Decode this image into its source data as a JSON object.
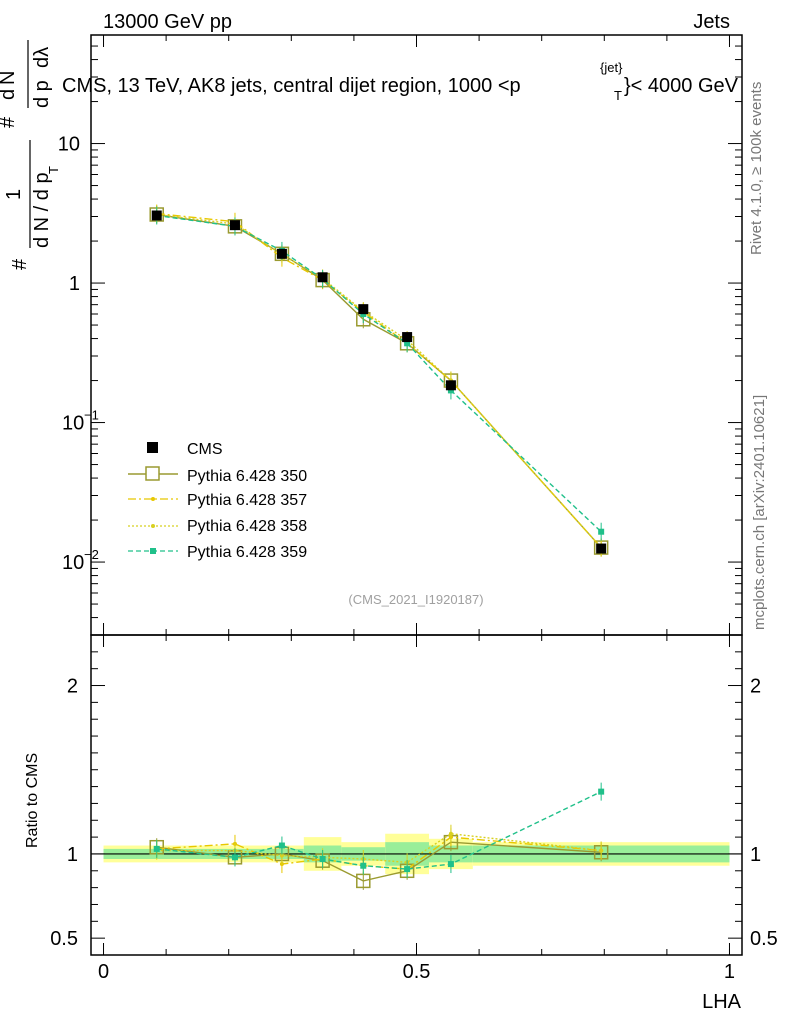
{
  "header": {
    "energy_label": "13000 GeV pp",
    "category_label": "Jets"
  },
  "side_labels": {
    "rivet": "Rivet 4.1.0, ≥ 100k events",
    "mcplots": "mcplots.cern.ch [arXiv:2401.10621]"
  },
  "chart_data": {
    "type": "line",
    "title": "CMS, 13 TeV, AK8 jets, central dijet region, 1000 <p",
    "title_sup": "{jet}",
    "title_sub": "T",
    "title_end": "}< 4000 GeV",
    "watermark": "(CMS_2021_I1920187)",
    "xlabel": "LHA",
    "ylabel": "1/dN/dpT  # d²N/dpT dλ",
    "ylabel_parts": {
      "a": "1",
      "b": "d N / d p",
      "c": "#",
      "d": "d",
      "e": "N",
      "f": "d p",
      "g": "dλ",
      "sub": "T",
      "hash": "#"
    },
    "ratio_ylabel": "Ratio to CMS",
    "xlim": [
      -0.02,
      1.02
    ],
    "ylim": [
      0.003,
      60
    ],
    "yscale": "log",
    "x_ticks": [
      "0",
      "0.5",
      "1"
    ],
    "y_ticks": [
      {
        "value": 0.01,
        "base": "10",
        "exp": "−2"
      },
      {
        "value": 0.1,
        "base": "10",
        "exp": "−1"
      },
      {
        "value": 1,
        "base": "1",
        "exp": ""
      },
      {
        "value": 10,
        "base": "10",
        "exp": ""
      }
    ],
    "ratio_ylim": [
      0.4,
      2.3
    ],
    "ratio_ticks": [
      "0.5",
      "1",
      "2"
    ],
    "ratio_tick_values": [
      0.5,
      1,
      2
    ],
    "x": [
      0.085,
      0.21,
      0.285,
      0.35,
      0.415,
      0.485,
      0.555,
      0.795
    ],
    "cms": {
      "name": "CMS",
      "values": [
        3.05,
        2.6,
        1.62,
        1.1,
        0.65,
        0.41,
        0.185,
        0.0125
      ],
      "band_x_edges": [
        0.0,
        0.25,
        0.32,
        0.38,
        0.45,
        0.52,
        0.59,
        1.0
      ],
      "band_stat": [
        0.03,
        0.03,
        0.05,
        0.04,
        0.07,
        0.05,
        0.05,
        0.06
      ],
      "band_total": [
        0.05,
        0.05,
        0.1,
        0.07,
        0.12,
        0.09,
        0.07,
        0.12
      ]
    },
    "series": [
      {
        "name": "Pythia 6.428 350",
        "color": "#9a9a30",
        "style": "solid",
        "marker": "open-square",
        "values": [
          3.1,
          2.55,
          1.62,
          1.05,
          0.55,
          0.37,
          0.2,
          0.0127
        ],
        "ratio": [
          1.04,
          0.98,
          1.0,
          0.96,
          0.84,
          0.9,
          1.07,
          1.01
        ]
      },
      {
        "name": "Pythia 6.428 357",
        "color": "#e8c800",
        "style": "dashdot",
        "marker": "small-dot",
        "values": [
          3.15,
          2.75,
          1.52,
          1.05,
          0.62,
          0.37,
          0.2,
          0.0127
        ],
        "ratio": [
          1.03,
          1.06,
          0.94,
          0.97,
          0.93,
          0.91,
          1.1,
          1.02
        ]
      },
      {
        "name": "Pythia 6.428 358",
        "color": "#d8d020",
        "style": "dotted",
        "marker": "small-dot",
        "values": [
          3.1,
          2.65,
          1.6,
          1.08,
          0.63,
          0.39,
          0.2,
          0.0127
        ],
        "ratio": [
          1.02,
          1.02,
          0.99,
          0.98,
          0.97,
          0.95,
          1.12,
          1.02
        ]
      },
      {
        "name": "Pythia 6.428 359",
        "color": "#20c08a",
        "style": "dashed",
        "marker": "filled-square",
        "values": [
          3.05,
          2.55,
          1.7,
          1.07,
          0.6,
          0.37,
          0.17,
          0.0165
        ],
        "ratio": [
          1.03,
          0.98,
          1.05,
          0.97,
          0.93,
          0.91,
          0.94,
          1.37
        ]
      }
    ]
  }
}
